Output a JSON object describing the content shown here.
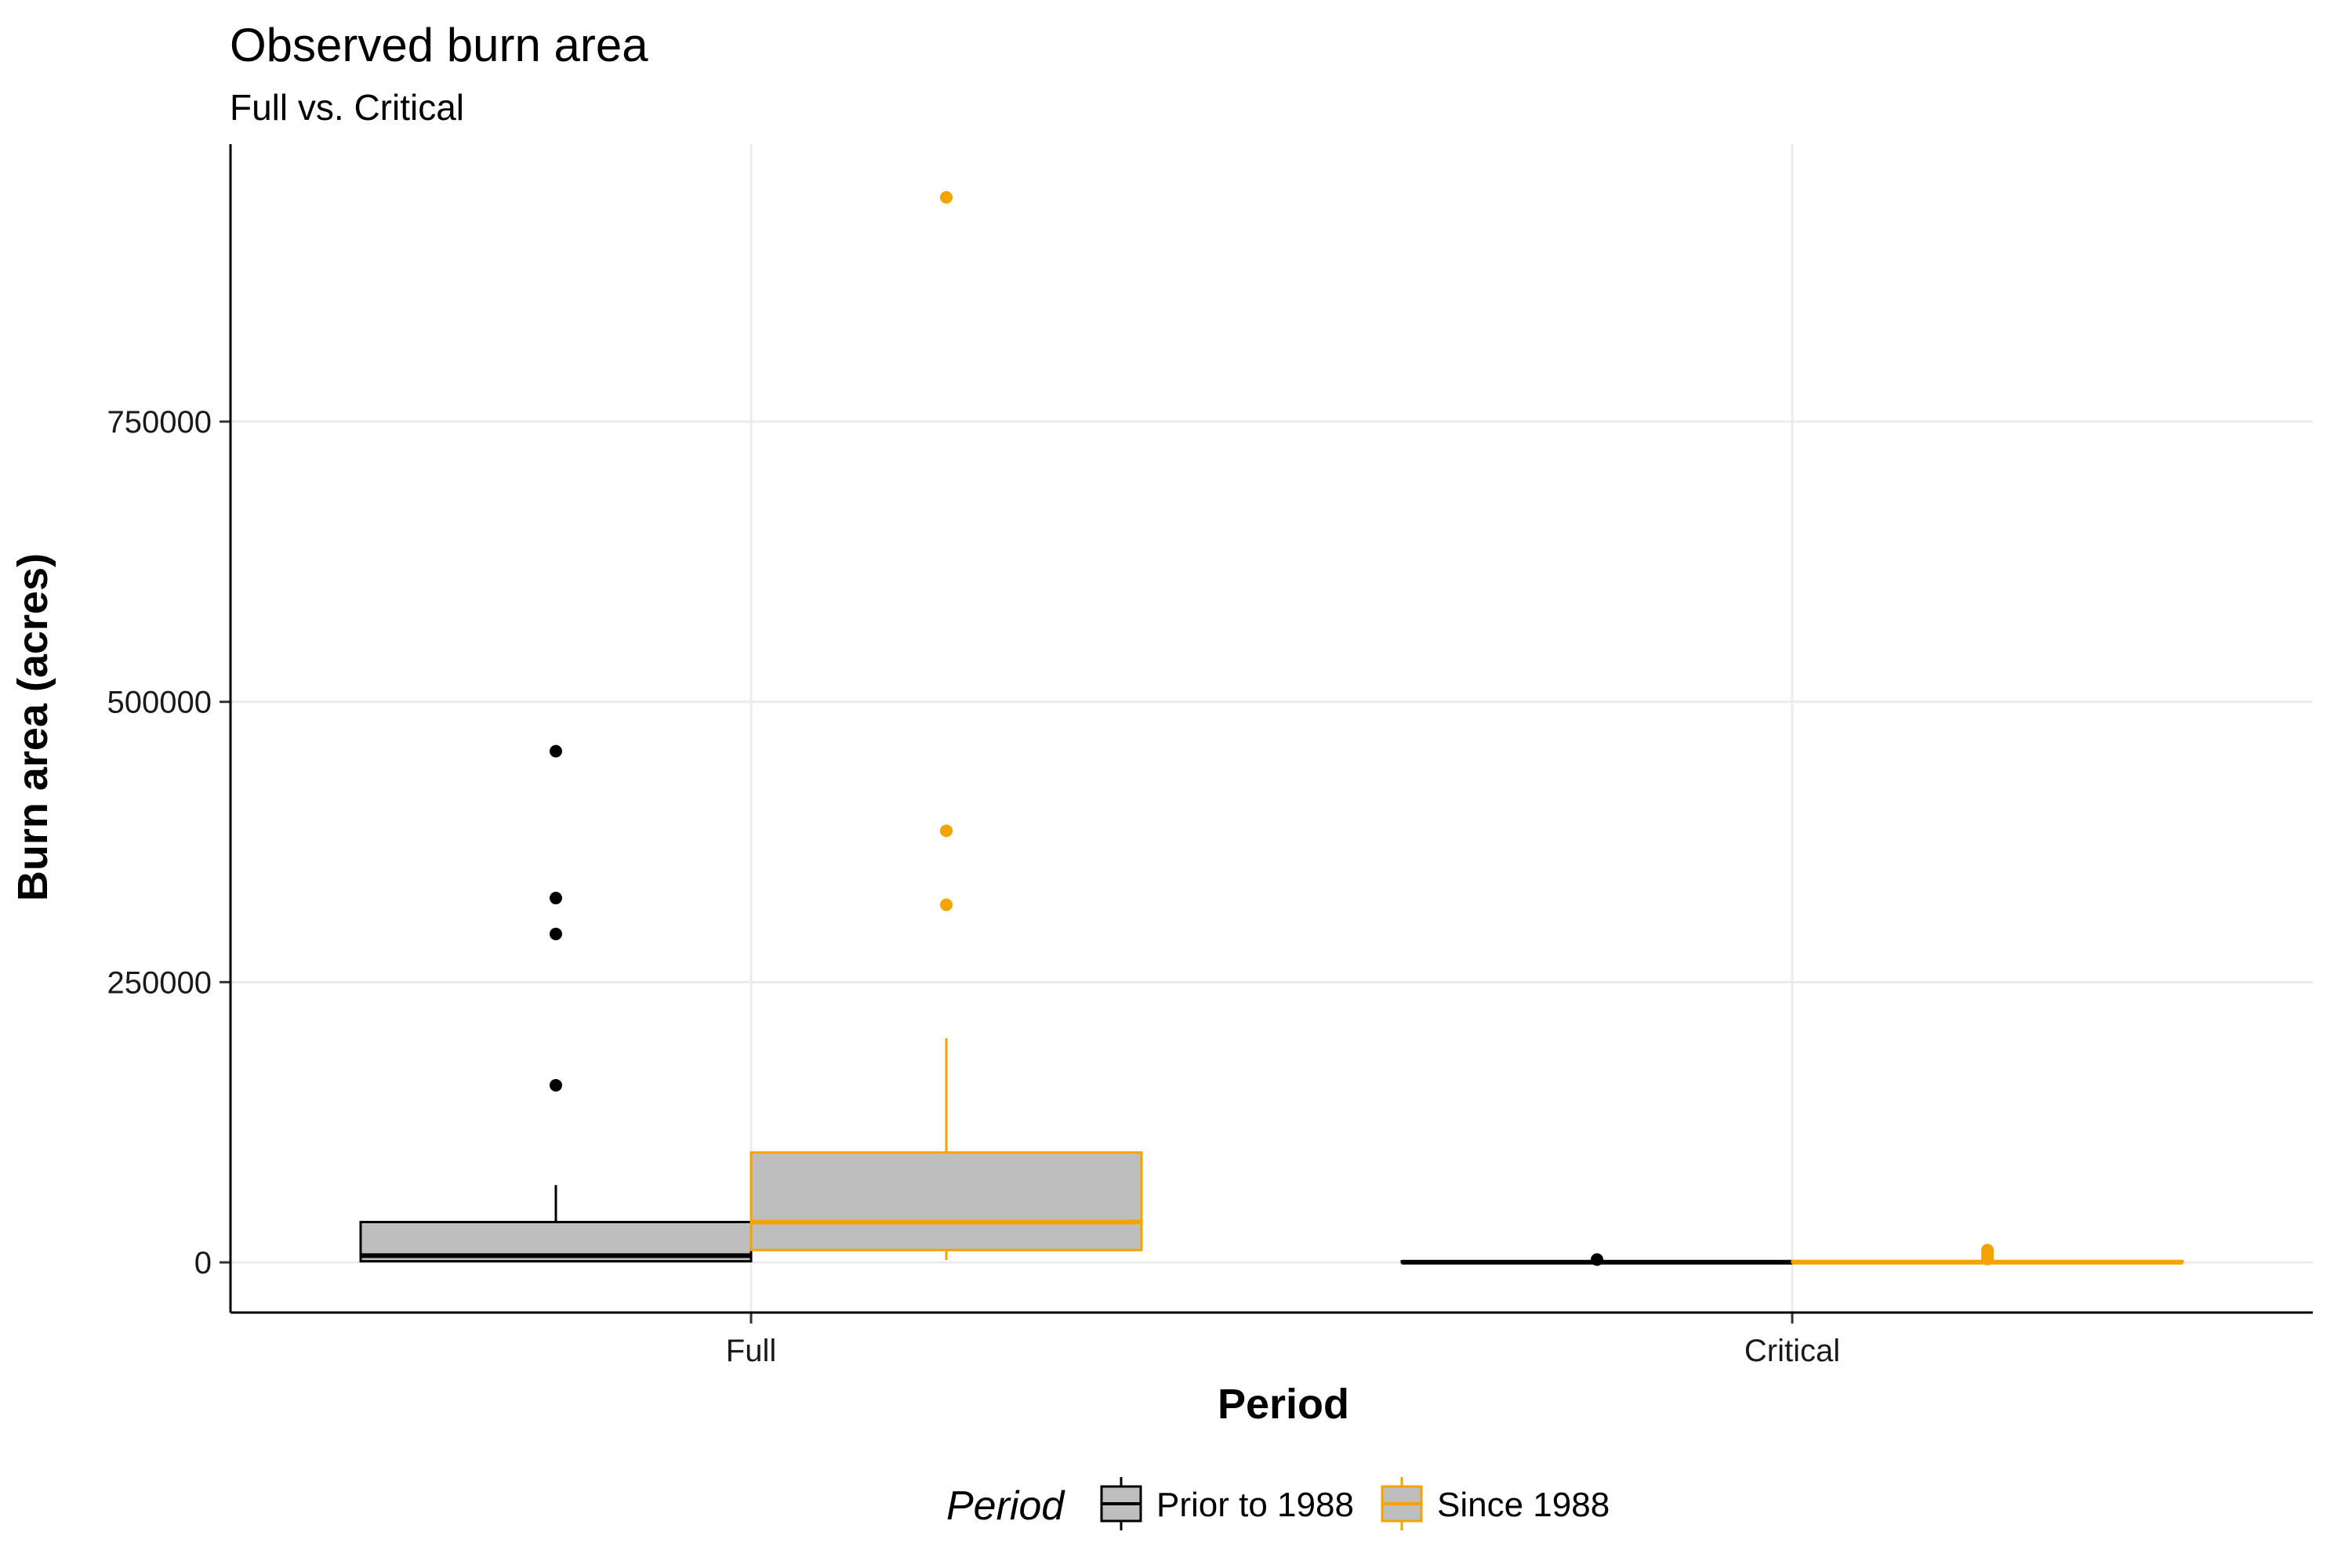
{
  "chart_data": {
    "type": "box",
    "title": "Observed burn area",
    "subtitle": "Full vs. Critical",
    "xlabel": "Period",
    "ylabel": "Burn area (acres)",
    "categories": [
      "Full",
      "Critical"
    ],
    "ylim": [
      -95000,
      995000
    ],
    "yticks": [
      0,
      250000,
      500000,
      750000
    ],
    "ytick_labels": [
      "0",
      "250000",
      "500000",
      "750000"
    ],
    "grid": true,
    "legend": {
      "title": "Period",
      "position": "bottom",
      "entries": [
        "Prior to 1988",
        "Since 1988"
      ]
    },
    "series": [
      {
        "name": "Prior to 1988",
        "color": "#000000",
        "fill": "#bebebe",
        "boxes": [
          {
            "category": "Full",
            "min": 0,
            "q1": 1000,
            "median": 6000,
            "q3": 36000,
            "max": 69000,
            "outliers": [
              158000,
              293000,
              325000,
              456000
            ]
          },
          {
            "category": "Critical",
            "min": 0,
            "q1": 0,
            "median": 200,
            "q3": 1000,
            "max": 1500,
            "outliers": [
              2500
            ]
          }
        ]
      },
      {
        "name": "Since 1988",
        "color": "#f5a300",
        "fill": "#bebebe",
        "boxes": [
          {
            "category": "Full",
            "min": 2000,
            "q1": 11000,
            "median": 36000,
            "q3": 98000,
            "max": 200000,
            "outliers": [
              319000,
              385000,
              950000
            ]
          },
          {
            "category": "Critical",
            "min": 0,
            "q1": 0,
            "median": 200,
            "q3": 1200,
            "max": 2000,
            "outliers": [
              3000,
              6000,
              9000,
              11000
            ]
          }
        ]
      }
    ]
  }
}
